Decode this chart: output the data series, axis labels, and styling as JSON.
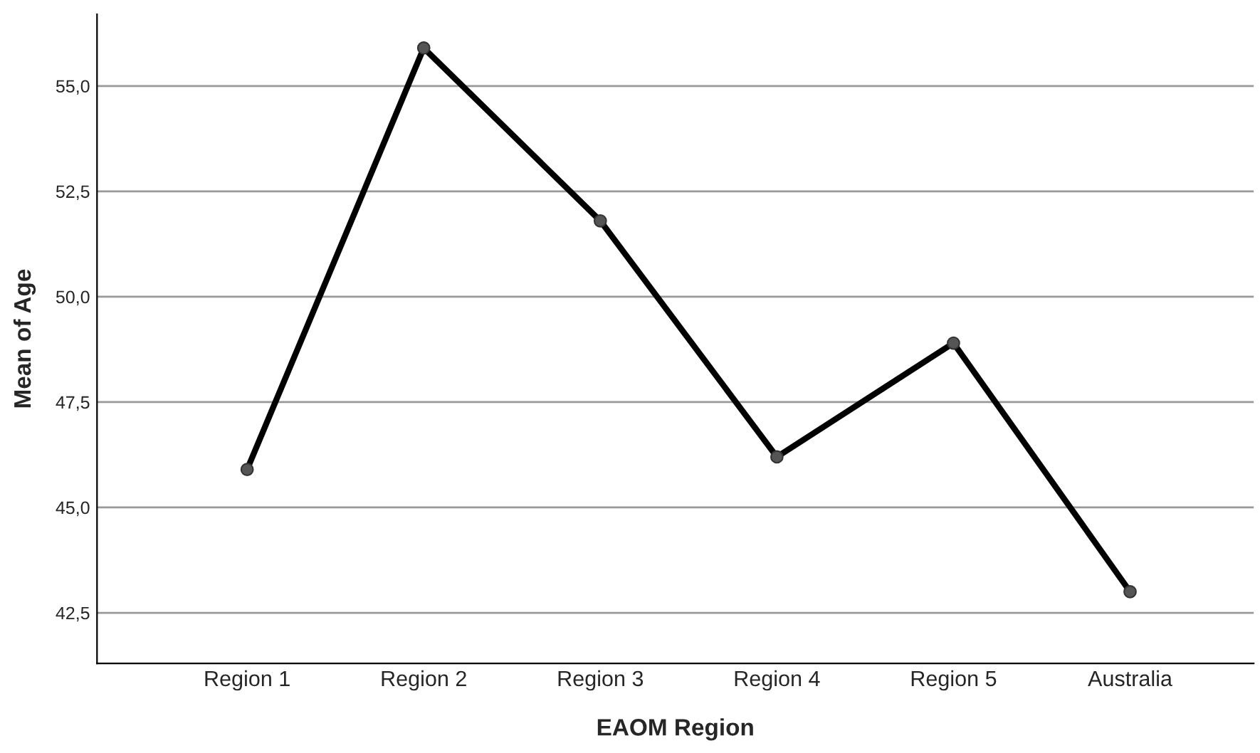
{
  "chart_data": {
    "type": "line",
    "xlabel": "EAOM Region",
    "ylabel": "Mean of Age",
    "categories": [
      "Region 1",
      "Region 2",
      "Region 3",
      "Region 4",
      "Region 5",
      "Australia"
    ],
    "series": [
      {
        "color": "#000000",
        "values": [
          45.9,
          55.9,
          51.8,
          46.2,
          48.9,
          43.0
        ]
      }
    ],
    "ylim": [
      41.3,
      56.7
    ],
    "yticks": [
      {
        "value": 42.5,
        "label": "42,5"
      },
      {
        "value": 45.0,
        "label": "45,0"
      },
      {
        "value": 47.5,
        "label": "47,5"
      },
      {
        "value": 50.0,
        "label": "50,0"
      },
      {
        "value": 52.5,
        "label": "52,5"
      },
      {
        "value": 55.0,
        "label": "55,0"
      }
    ],
    "grid": "y",
    "marker": "circle",
    "line_style": "solid",
    "legend": false
  }
}
